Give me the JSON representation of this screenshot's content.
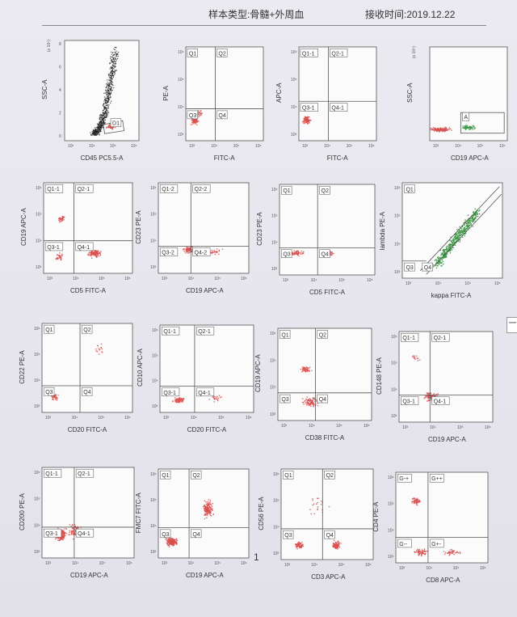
{
  "header": {
    "sample_type": "样本类型:骨髓+外周血",
    "received": "接收时间:2019.12.22"
  },
  "page_number": "1",
  "side_tab": "一",
  "colors": {
    "red": "#d9504f",
    "green": "#3f9a47",
    "black": "#222222"
  },
  "chart_data": [
    {
      "type": "scatter",
      "xlabel": "CD45 PC5.5-A",
      "ylabel": "SSC-A",
      "y_exponent": "(x 10⁵)",
      "yticks": [
        "8",
        "6",
        "4",
        "2",
        "0"
      ],
      "xticks": [
        "10³",
        "10⁴",
        "10⁵",
        "10⁶"
      ],
      "gates": [
        "D1"
      ]
    },
    {
      "type": "scatter",
      "xlabel": "FITC-A",
      "ylabel": "PE-A",
      "gates": [
        "Q1",
        "Q2",
        "Q3",
        "Q4"
      ]
    },
    {
      "type": "scatter",
      "xlabel": "FITC-A",
      "ylabel": "APC-A",
      "gates": [
        "Q1-1",
        "Q2-1",
        "Q3-1",
        "Q4-1"
      ]
    },
    {
      "type": "scatter",
      "xlabel": "CD19 APC-A",
      "ylabel": "SSC-A",
      "y_exponent": "(x 10⁵)",
      "gates": [
        "A"
      ]
    },
    {
      "type": "scatter",
      "xlabel": "CD5 FITC-A",
      "ylabel": "CD19 APC-A",
      "gates": [
        "Q1-1",
        "Q2-1",
        "Q3-1",
        "Q4-1"
      ]
    },
    {
      "type": "scatter",
      "xlabel": "CD19 APC-A",
      "ylabel": "CD23 PE-A",
      "gates": [
        "Q1-2",
        "Q2-2",
        "Q3-2",
        "Q4-2"
      ]
    },
    {
      "type": "scatter",
      "xlabel": "CD5 FITC-A",
      "ylabel": "CD23 PE-A",
      "gates": [
        "Q1",
        "Q2",
        "Q3",
        "Q4"
      ]
    },
    {
      "type": "scatter",
      "xlabel": "kappa FITC-A",
      "ylabel": "lambda PE-A",
      "gates": [
        "Q1",
        "Q3",
        "Q4"
      ]
    },
    {
      "type": "scatter",
      "xlabel": "CD20 FITC-A",
      "ylabel": "CD22 PE-A",
      "gates": [
        "Q1",
        "Q2",
        "Q3",
        "Q4"
      ]
    },
    {
      "type": "scatter",
      "xlabel": "CD20 FITC-A",
      "ylabel": "CD10 APC-A",
      "gates": [
        "Q1-1",
        "Q2-1",
        "Q3-1",
        "Q4-1"
      ]
    },
    {
      "type": "scatter",
      "xlabel": "CD38 FITC-A",
      "ylabel": "CD19 APC-A",
      "gates": [
        "Q1",
        "Q2",
        "Q3",
        "Q4"
      ]
    },
    {
      "type": "scatter",
      "xlabel": "CD19 APC-A",
      "ylabel": "CD148 PE-A",
      "gates": [
        "Q1-1",
        "Q2-1",
        "Q3-1",
        "Q4-1"
      ]
    },
    {
      "type": "scatter",
      "xlabel": "CD19 APC-A",
      "ylabel": "CD200 PE-A",
      "gates": [
        "Q1-1",
        "Q2-1",
        "Q3-1",
        "Q4-1"
      ]
    },
    {
      "type": "scatter",
      "xlabel": "CD19 APC-A",
      "ylabel": "FMC7 FITC-A",
      "gates": [
        "Q1",
        "Q2",
        "Q3",
        "Q4"
      ]
    },
    {
      "type": "scatter",
      "xlabel": "CD3 APC-A",
      "ylabel": "CD56 PE-A",
      "gates": [
        "Q1",
        "Q2",
        "Q3",
        "Q4"
      ]
    },
    {
      "type": "scatter",
      "xlabel": "CD8 APC-A",
      "ylabel": "CD4 PE-A",
      "gates": [
        "G-+",
        "G++",
        "G--",
        "G+-"
      ]
    }
  ]
}
